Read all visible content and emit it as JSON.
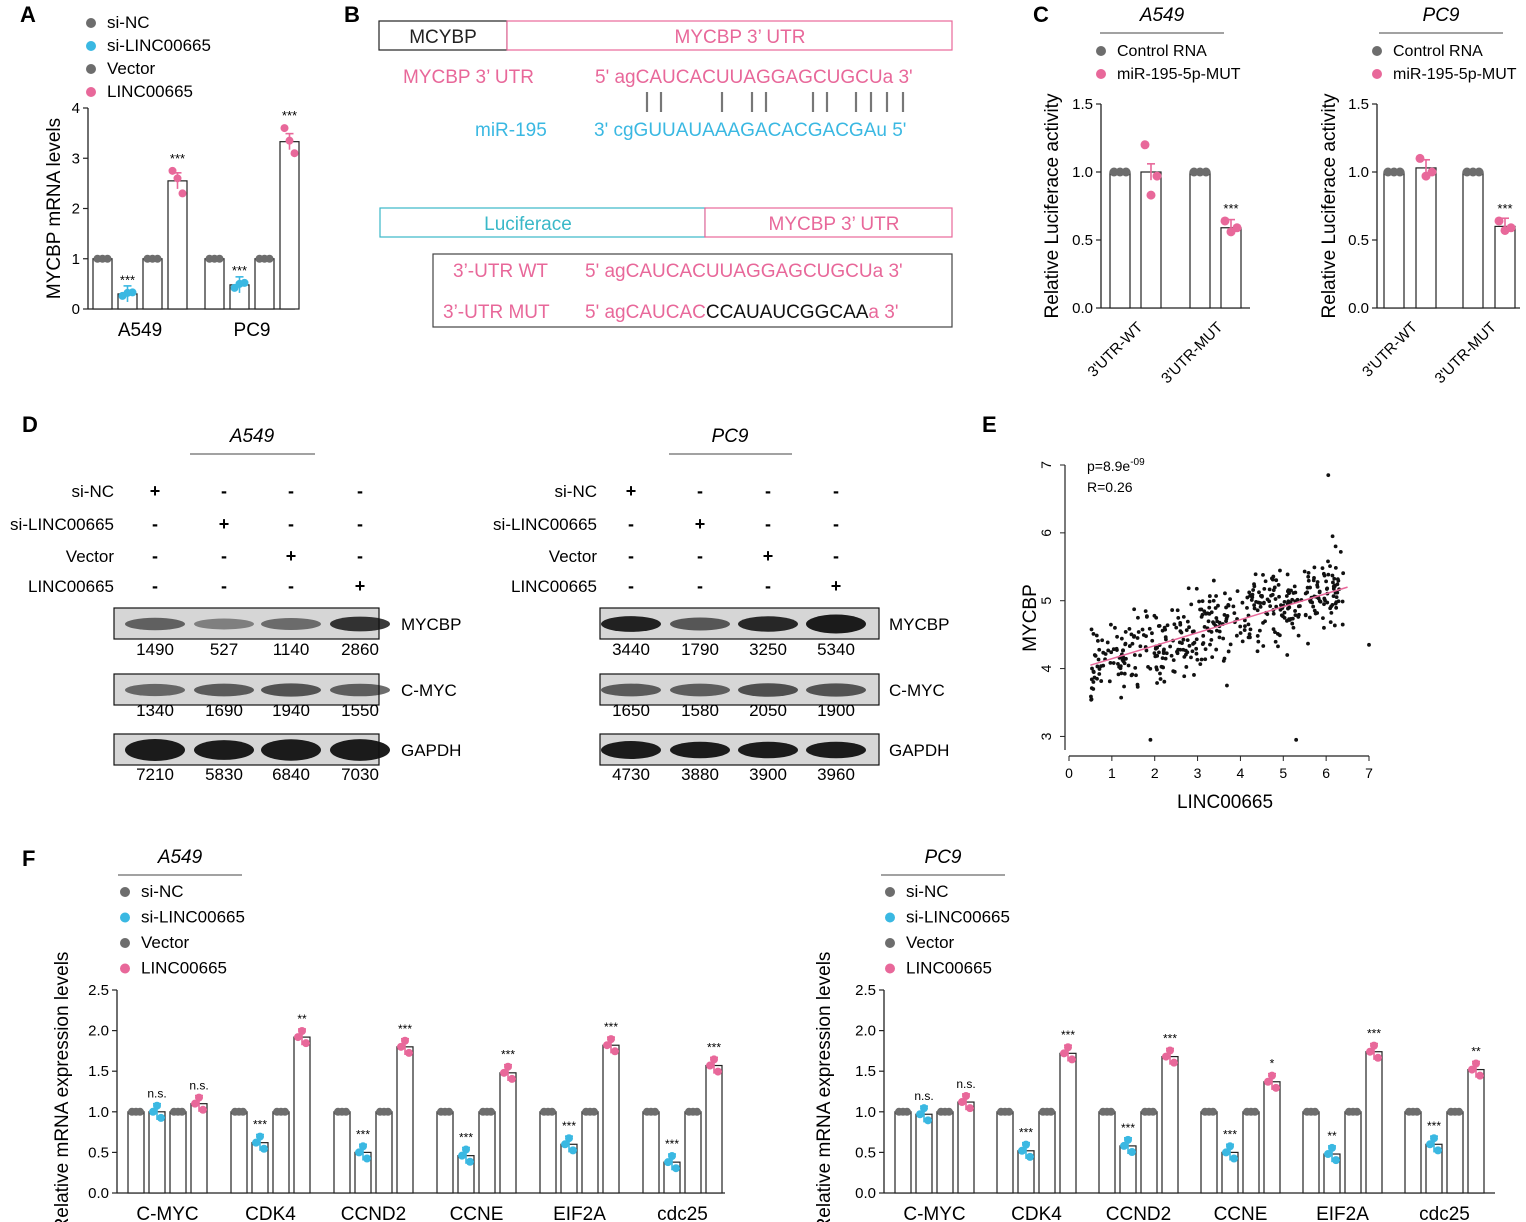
{
  "colors": {
    "gray": "#6d6d6d",
    "blue": "#3ab8e2",
    "pink": "#e8689a",
    "black": "#222222",
    "cyan_box": "#3ab8c8"
  },
  "panel_labels": {
    "a": "A",
    "b": "B",
    "c": "C",
    "d": "D",
    "e": "E",
    "f": "F"
  },
  "legend_sets": {
    "four": [
      "si-NC",
      "si-LINC00665",
      "Vector",
      "LINC00665"
    ],
    "two": [
      "Control RNA",
      "miR-195-5p-MUT"
    ]
  },
  "panel_b": {
    "box1_left": "MCYBP",
    "box1_right": "MYCBP  3’ UTR",
    "label_utr": "MYCBP  3’ UTR",
    "seq_utr": "5' agCAUCACUUAGGAGCUGCUa 3'",
    "label_mir": "miR-195",
    "seq_mir": "3' cgGUUAUAAAGACACGACGAu 5'",
    "box2_left": "Luciferace",
    "box2_right": "MYCBP  3’ UTR",
    "wt_label": "3’-UTR WT",
    "wt_seq": "5' agCAUCACUUAGGAGCUGCUa 3'",
    "mut_label": "3’-UTR MUT",
    "mut_seq_a": "5' agCAUCAC",
    "mut_seq_b": "CCAUAUCGGCAA",
    "mut_seq_c": "a 3'"
  },
  "panel_d": {
    "row_labels": [
      "si-NC",
      "si-LINC00665",
      "Vector",
      "LINC00665"
    ],
    "signs": [
      [
        "+",
        "-",
        "-",
        "-"
      ],
      [
        "-",
        "+",
        "-",
        "-"
      ],
      [
        "-",
        "-",
        "+",
        "-"
      ],
      [
        "-",
        "-",
        "-",
        "+"
      ]
    ],
    "proteins": [
      "MYCBP",
      "C-MYC",
      "GAPDH"
    ],
    "a549": {
      "title": "A549",
      "values": [
        [
          "1490",
          "527",
          "1140",
          "2860"
        ],
        [
          "1340",
          "1690",
          "1940",
          "1550"
        ],
        [
          "7210",
          "5830",
          "6840",
          "7030"
        ]
      ]
    },
    "pc9": {
      "title": "PC9",
      "values": [
        [
          "3440",
          "1790",
          "3250",
          "5340"
        ],
        [
          "1650",
          "1580",
          "2050",
          "1900"
        ],
        [
          "4730",
          "3880",
          "3900",
          "3960"
        ]
      ]
    }
  },
  "chart_data": [
    {
      "id": "A",
      "type": "bar",
      "ylabel": "MYCBP mRNA levels",
      "ylim": [
        0,
        4
      ],
      "yticks": [
        "0",
        "1",
        "2",
        "3",
        "4"
      ],
      "groups": [
        "A549",
        "PC9"
      ],
      "series": [
        {
          "name": "si-NC",
          "color": "#6d6d6d",
          "values": [
            1.0,
            1.0
          ],
          "points": [
            [
              1,
              1,
              1
            ],
            [
              1,
              1,
              1
            ]
          ]
        },
        {
          "name": "si-LINC00665",
          "color": "#3ab8e2",
          "values": [
            0.3,
            0.48
          ],
          "points": [
            [
              0.26,
              0.32,
              0.33
            ],
            [
              0.42,
              0.5,
              0.52
            ]
          ],
          "sig": [
            "***",
            "***"
          ]
        },
        {
          "name": "Vector",
          "color": "#6d6d6d",
          "values": [
            1.0,
            1.0
          ],
          "points": [
            [
              1,
              1,
              1
            ],
            [
              1,
              1,
              1
            ]
          ]
        },
        {
          "name": "LINC00665",
          "color": "#e8689a",
          "values": [
            2.55,
            3.33
          ],
          "points": [
            [
              2.75,
              2.6,
              2.3
            ],
            [
              3.6,
              3.35,
              3.1
            ]
          ],
          "sig": [
            "***",
            "***"
          ]
        }
      ]
    },
    {
      "id": "C-A549",
      "type": "bar",
      "title": "A549",
      "ylabel": "Relative Luciferace activity",
      "ylim": [
        0,
        1.5
      ],
      "yticks": [
        "0.0",
        "0.5",
        "1.0",
        "1.5"
      ],
      "groups": [
        "3'UTR-WT",
        "3'UTR-MUT"
      ],
      "series": [
        {
          "name": "Control RNA",
          "color": "#6d6d6d",
          "values": [
            1.0,
            1.0
          ],
          "points": [
            [
              1,
              1,
              1
            ],
            [
              1,
              1,
              1
            ]
          ]
        },
        {
          "name": "miR-195-5p-MUT",
          "color": "#e8689a",
          "values": [
            1.0,
            0.59
          ],
          "points": [
            [
              1.2,
              0.83,
              0.97
            ],
            [
              0.64,
              0.56,
              0.59
            ]
          ],
          "sig": [
            "",
            "***"
          ]
        }
      ]
    },
    {
      "id": "C-PC9",
      "type": "bar",
      "title": "PC9",
      "ylabel": "Relative Luciferace activity",
      "ylim": [
        0,
        1.5
      ],
      "yticks": [
        "0.0",
        "0.5",
        "1.0",
        "1.5"
      ],
      "groups": [
        "3'UTR-WT",
        "3'UTR-MUT"
      ],
      "series": [
        {
          "name": "Control RNA",
          "color": "#6d6d6d",
          "values": [
            1.0,
            1.0
          ],
          "points": [
            [
              1,
              1,
              1
            ],
            [
              1,
              1,
              1
            ]
          ]
        },
        {
          "name": "miR-195-5p-MUT",
          "color": "#e8689a",
          "values": [
            1.03,
            0.6
          ],
          "points": [
            [
              1.1,
              0.97,
              1.0
            ],
            [
              0.64,
              0.57,
              0.59
            ]
          ],
          "sig": [
            "",
            "***"
          ]
        }
      ]
    },
    {
      "id": "E",
      "type": "scatter",
      "xlabel": "LINC00665",
      "ylabel": "MYCBP",
      "xlim": [
        0,
        7
      ],
      "ylim": [
        2.8,
        7
      ],
      "xticks": [
        "0",
        "1",
        "2",
        "3",
        "4",
        "5",
        "6",
        "7"
      ],
      "yticks": [
        "3",
        "4",
        "5",
        "6",
        "7"
      ],
      "annotation_p": "p=8.9e",
      "annotation_p_exp": "-09",
      "annotation_r": "R=0.26",
      "n_points": 450,
      "trend": {
        "x": [
          0.5,
          6.5
        ],
        "y": [
          4.05,
          5.2
        ]
      }
    },
    {
      "id": "F-A549",
      "type": "bar",
      "title": "A549",
      "ylabel": "Relative mRNA expression levels",
      "ylim": [
        0,
        2.5
      ],
      "yticks": [
        "0.0",
        "0.5",
        "1.0",
        "1.5",
        "2.0",
        "2.5"
      ],
      "groups": [
        "C-MYC",
        "CDK4",
        "CCND2",
        "CCNE",
        "EIF2A",
        "cdc25"
      ],
      "series": [
        {
          "name": "si-NC",
          "color": "#6d6d6d",
          "values": [
            1,
            1,
            1,
            1,
            1,
            1
          ]
        },
        {
          "name": "si-LINC00665",
          "color": "#3ab8e2",
          "values": [
            1.0,
            0.62,
            0.5,
            0.46,
            0.6,
            0.38
          ],
          "sig": [
            "n.s.",
            "***",
            "***",
            "***",
            "***",
            "***"
          ]
        },
        {
          "name": "Vector",
          "color": "#6d6d6d",
          "values": [
            1,
            1,
            1,
            1,
            1,
            1
          ]
        },
        {
          "name": "LINC00665",
          "color": "#e8689a",
          "values": [
            1.1,
            1.92,
            1.8,
            1.48,
            1.82,
            1.57
          ],
          "sig": [
            "n.s.",
            "**",
            "***",
            "***",
            "***",
            "***"
          ]
        }
      ]
    },
    {
      "id": "F-PC9",
      "type": "bar",
      "title": "PC9",
      "ylabel": "Relative mRNA expression levels",
      "ylim": [
        0,
        2.5
      ],
      "yticks": [
        "0.0",
        "0.5",
        "1.0",
        "1.5",
        "2.0",
        "2.5"
      ],
      "groups": [
        "C-MYC",
        "CDK4",
        "CCND2",
        "CCNE",
        "EIF2A",
        "cdc25"
      ],
      "series": [
        {
          "name": "si-NC",
          "color": "#6d6d6d",
          "values": [
            1,
            1,
            1,
            1,
            1,
            1
          ]
        },
        {
          "name": "si-LINC00665",
          "color": "#3ab8e2",
          "values": [
            0.97,
            0.52,
            0.58,
            0.5,
            0.48,
            0.6
          ],
          "sig": [
            "n.s.",
            "***",
            "***",
            "***",
            "**",
            "***"
          ]
        },
        {
          "name": "Vector",
          "color": "#6d6d6d",
          "values": [
            1,
            1,
            1,
            1,
            1,
            1
          ]
        },
        {
          "name": "LINC00665",
          "color": "#e8689a",
          "values": [
            1.12,
            1.72,
            1.68,
            1.37,
            1.74,
            1.52
          ],
          "sig": [
            "n.s.",
            "***",
            "***",
            "*",
            "***",
            "**"
          ]
        }
      ]
    }
  ]
}
